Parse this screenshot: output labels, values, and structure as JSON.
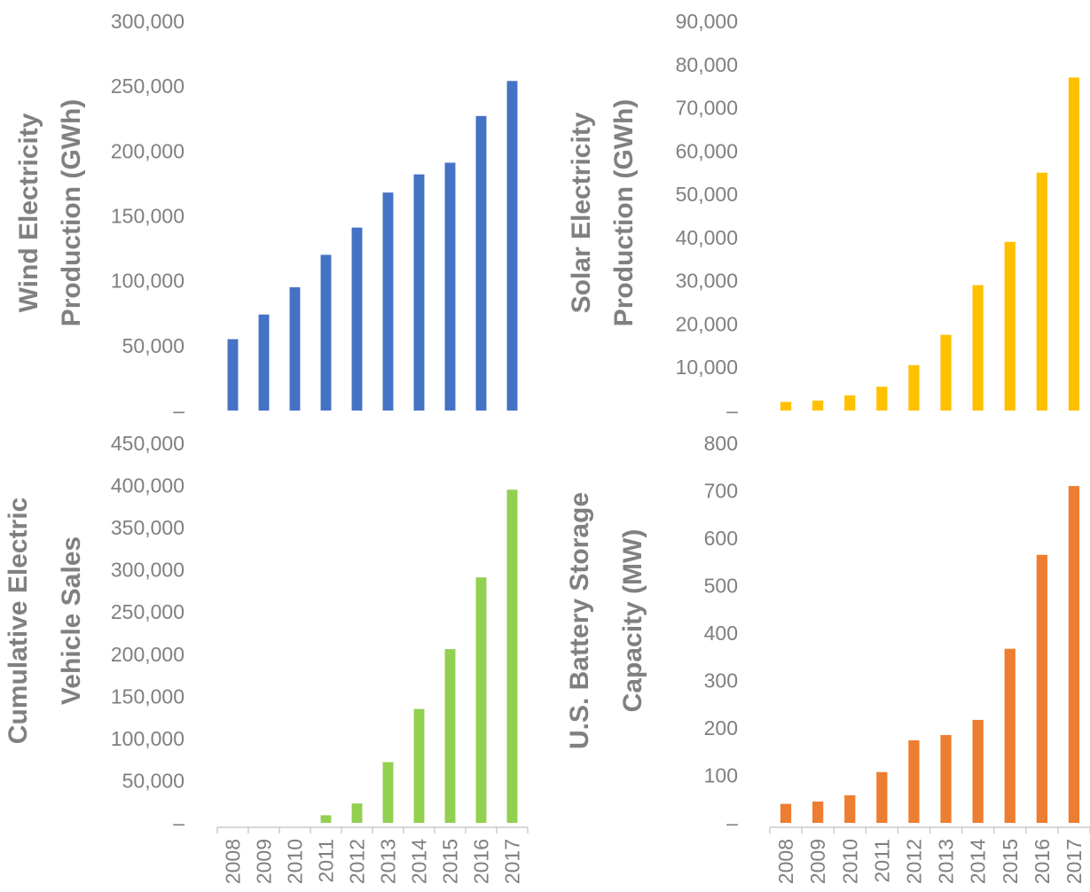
{
  "chart_data": [
    {
      "type": "bar",
      "categories": [
        "2008",
        "2009",
        "2010",
        "2011",
        "2012",
        "2013",
        "2014",
        "2015",
        "2016",
        "2017"
      ],
      "values": [
        55000,
        74000,
        95000,
        120000,
        141000,
        168000,
        182000,
        191000,
        227000,
        254000
      ],
      "ylabel": [
        "Wind Electricity",
        "Production (GWh)"
      ],
      "ylim": [
        0,
        300000
      ],
      "yticks": [
        "–",
        "50,000",
        "100,000",
        "150,000",
        "200,000",
        "250,000",
        "300,000"
      ],
      "ytick_values": [
        0,
        50000,
        100000,
        150000,
        200000,
        250000,
        300000
      ],
      "show_xticks": false,
      "color": "#4472c4",
      "grid": false
    },
    {
      "type": "bar",
      "categories": [
        "2008",
        "2009",
        "2010",
        "2011",
        "2012",
        "2013",
        "2014",
        "2015",
        "2016",
        "2017"
      ],
      "values": [
        2000,
        2300,
        3500,
        5500,
        10500,
        17500,
        29000,
        39000,
        55000,
        77000
      ],
      "ylabel": [
        "Solar Electricity",
        "Production (GWh)"
      ],
      "ylim": [
        0,
        90000
      ],
      "yticks": [
        "–",
        "10,000",
        "20,000",
        "30,000",
        "40,000",
        "50,000",
        "60,000",
        "70,000",
        "80,000",
        "90,000"
      ],
      "ytick_values": [
        0,
        10000,
        20000,
        30000,
        40000,
        50000,
        60000,
        70000,
        80000,
        90000
      ],
      "show_xticks": false,
      "color": "#ffc000",
      "grid": false
    },
    {
      "type": "bar",
      "categories": [
        "2008",
        "2009",
        "2010",
        "2011",
        "2012",
        "2013",
        "2014",
        "2015",
        "2016",
        "2017"
      ],
      "values": [
        0,
        0,
        0,
        9000,
        23000,
        72000,
        135000,
        206000,
        291000,
        395000
      ],
      "ylabel": [
        "Cumulative Electric",
        "Vehicle Sales"
      ],
      "ylim": [
        0,
        450000
      ],
      "yticks": [
        "–",
        "50,000",
        "100,000",
        "150,000",
        "200,000",
        "250,000",
        "300,000",
        "350,000",
        "400,000",
        "450,000"
      ],
      "ytick_values": [
        0,
        50000,
        100000,
        150000,
        200000,
        250000,
        300000,
        350000,
        400000,
        450000
      ],
      "show_xticks": true,
      "color": "#92d050",
      "grid": false
    },
    {
      "type": "bar",
      "categories": [
        "2008",
        "2009",
        "2010",
        "2011",
        "2012",
        "2013",
        "2014",
        "2015",
        "2016",
        "2017"
      ],
      "values": [
        40,
        45,
        58,
        107,
        174,
        185,
        217,
        367,
        565,
        710
      ],
      "ylabel": [
        "U.S. Battery Storage",
        "Capacity (MW)"
      ],
      "ylim": [
        0,
        800
      ],
      "yticks": [
        "–",
        "100",
        "200",
        "300",
        "400",
        "500",
        "600",
        "700",
        "800"
      ],
      "ytick_values": [
        0,
        100,
        200,
        300,
        400,
        500,
        600,
        700,
        800
      ],
      "show_xticks": true,
      "color": "#ed7d31",
      "grid": false
    }
  ]
}
